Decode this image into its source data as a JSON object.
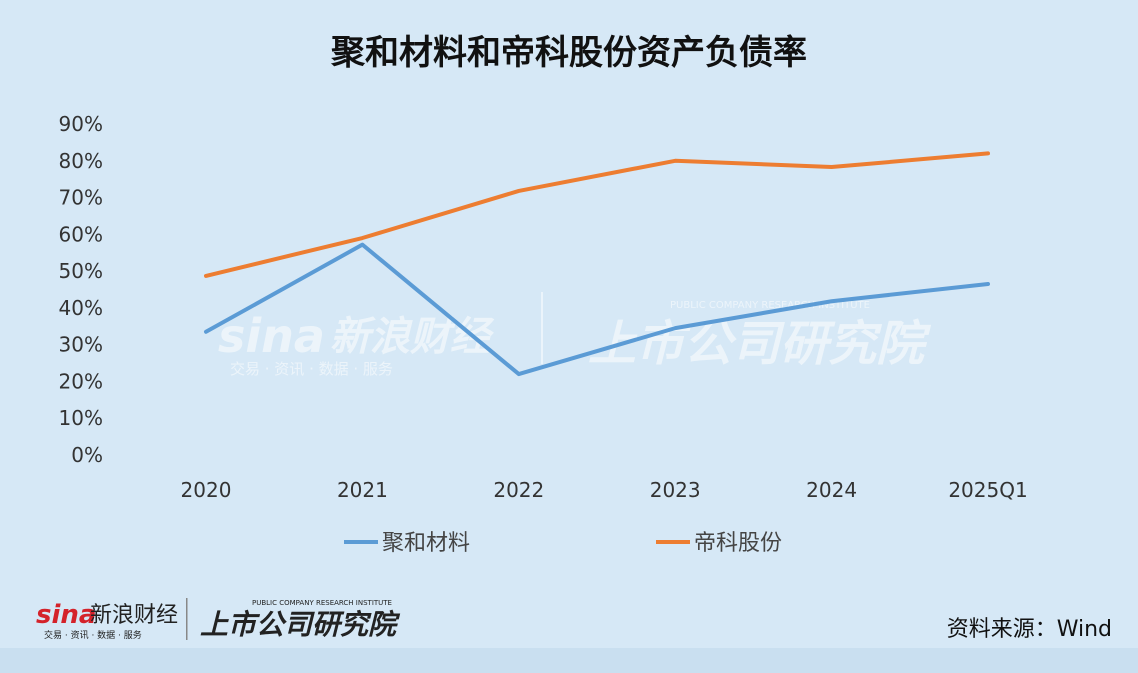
{
  "chart_data": {
    "type": "line",
    "title": "聚和材料和帝科股份资产负债率",
    "categories": [
      "2020",
      "2021",
      "2022",
      "2023",
      "2024",
      "2025Q1"
    ],
    "series": [
      {
        "name": "聚和材料",
        "color": "#5b9bd5",
        "values": [
          33.5,
          57.2,
          22.0,
          34.5,
          41.8,
          46.5
        ]
      },
      {
        "name": "帝科股份",
        "color": "#ed7d31",
        "values": [
          48.7,
          59.0,
          71.8,
          80.0,
          78.3,
          82.0
        ]
      }
    ],
    "y_ticks": [
      "0%",
      "10%",
      "20%",
      "30%",
      "40%",
      "50%",
      "60%",
      "70%",
      "80%",
      "90%"
    ],
    "ylim": [
      0,
      90
    ],
    "legend_position": "bottom",
    "grid": false
  },
  "watermark": {
    "sina_logo": "sina",
    "sina_name": "新浪财经",
    "sina_tagline": "交易 · 资讯 · 数据 · 服务",
    "institute_name": "上市公司研究院",
    "institute_en": "PUBLIC COMPANY RESEARCH INSTITUTE"
  },
  "footer": {
    "sina_logo": "sina",
    "sina_name": "新浪财经",
    "sina_tagline": "交易 · 资讯 · 数据 · 服务",
    "institute_name": "上市公司研究院",
    "institute_en": "PUBLIC COMPANY RESEARCH INSTITUTE",
    "source": "资料来源：Wind"
  }
}
